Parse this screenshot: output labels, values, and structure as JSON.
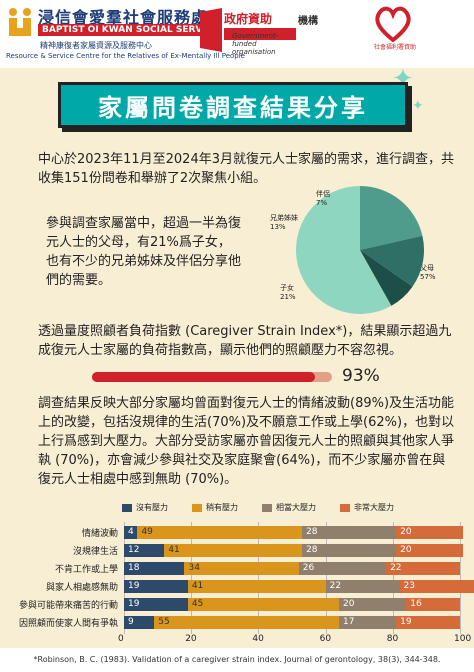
{
  "header": {
    "org_name": "浸信會愛羣社會服務處",
    "org_en": "BAPTIST OI KWAN SOCIAL SERVICE",
    "org_sub": "精神康復者家屬資源及服務中心",
    "org_sub_en": "Resource & Service Centre for the Relatives of Ex-Mentally Ill People",
    "gov_label": "政府資助",
    "gov_sub": "Government-funded organisation",
    "gov_tag": "機構",
    "sw_text": "社會福利署資助"
  },
  "title": "家屬問卷調查結果分享",
  "intro": "中心於2023年11月至2024年3月就復元人士家屬的需求，進行調查，共收集151份問卷和舉辦了2次聚焦小組。",
  "parents_text": "參與調查家屬當中，超過一半為復元人士的父母，有21%爲子女，也有不少的兄弟姊妹及伴侶分享他們的需要。",
  "strain_text": "透過量度照顧者負荷指數 (Caregiver Strain Index*)，結果顯示超過九成復元人士家屬的負荷指數高，顯示他們的照顧壓力不容忽視。",
  "strain_pct": "93%",
  "strain_value": 93,
  "findings_text": "調查結果反映大部分家屬均曾面對復元人士的情緒波動(89%)及生活功能上的改變，包括沒規律的生活(70%)及不願意工作或上學(62%)，也對以上行爲感到大壓力。大部分受訪家屬亦曾因復元人士的照顧與其他家人爭執 (70%)，亦會減少參與社交及家庭聚會(64%)，而不少家屬亦曾在與復元人士相處中感到無助 (70%)。",
  "footnote": "*Robinson, B. C. (1983). Validation of a caregiver strain index. Journal of gerontology, 38(3), 344-348.",
  "colors": {
    "teal": "#00a8a8",
    "red": "#d0202a",
    "navy": "#1d3c78"
  },
  "chart_data": [
    {
      "type": "pie",
      "labels": [
        "父母",
        "子女",
        "兄弟姊妹",
        "伴侶"
      ],
      "values": [
        57,
        21,
        13,
        7
      ],
      "value_labels": [
        "57%",
        "21%",
        "13%",
        "7%"
      ],
      "colors": [
        "#8fd6c0",
        "#4f9b8c",
        "#2e7065",
        "#1d4e47"
      ]
    },
    {
      "type": "bar",
      "stacked": true,
      "categories": [
        "情緒波動",
        "沒規律生活",
        "不肯工作或上學",
        "與家人相處感無助",
        "參與可能帶來痛苦的行動",
        "因照顧而使家人間有爭執"
      ],
      "series": [
        {
          "name": "沒有壓力",
          "values": [
            4,
            12,
            18,
            19,
            19,
            9
          ],
          "color": "#2d4a6b"
        },
        {
          "name": "稍有壓力",
          "values": [
            49,
            41,
            34,
            41,
            45,
            55
          ],
          "color": "#d9951c"
        },
        {
          "name": "相當大壓力",
          "values": [
            28,
            28,
            26,
            22,
            20,
            17
          ],
          "color": "#8f7f6c"
        },
        {
          "name": "非常大壓力",
          "values": [
            20,
            20,
            22,
            23,
            16,
            19
          ],
          "color": "#d66b3a"
        }
      ],
      "x_ticks": [
        "0",
        "20",
        "40",
        "60",
        "80",
        "100"
      ],
      "xlim": [
        0,
        100
      ]
    }
  ]
}
